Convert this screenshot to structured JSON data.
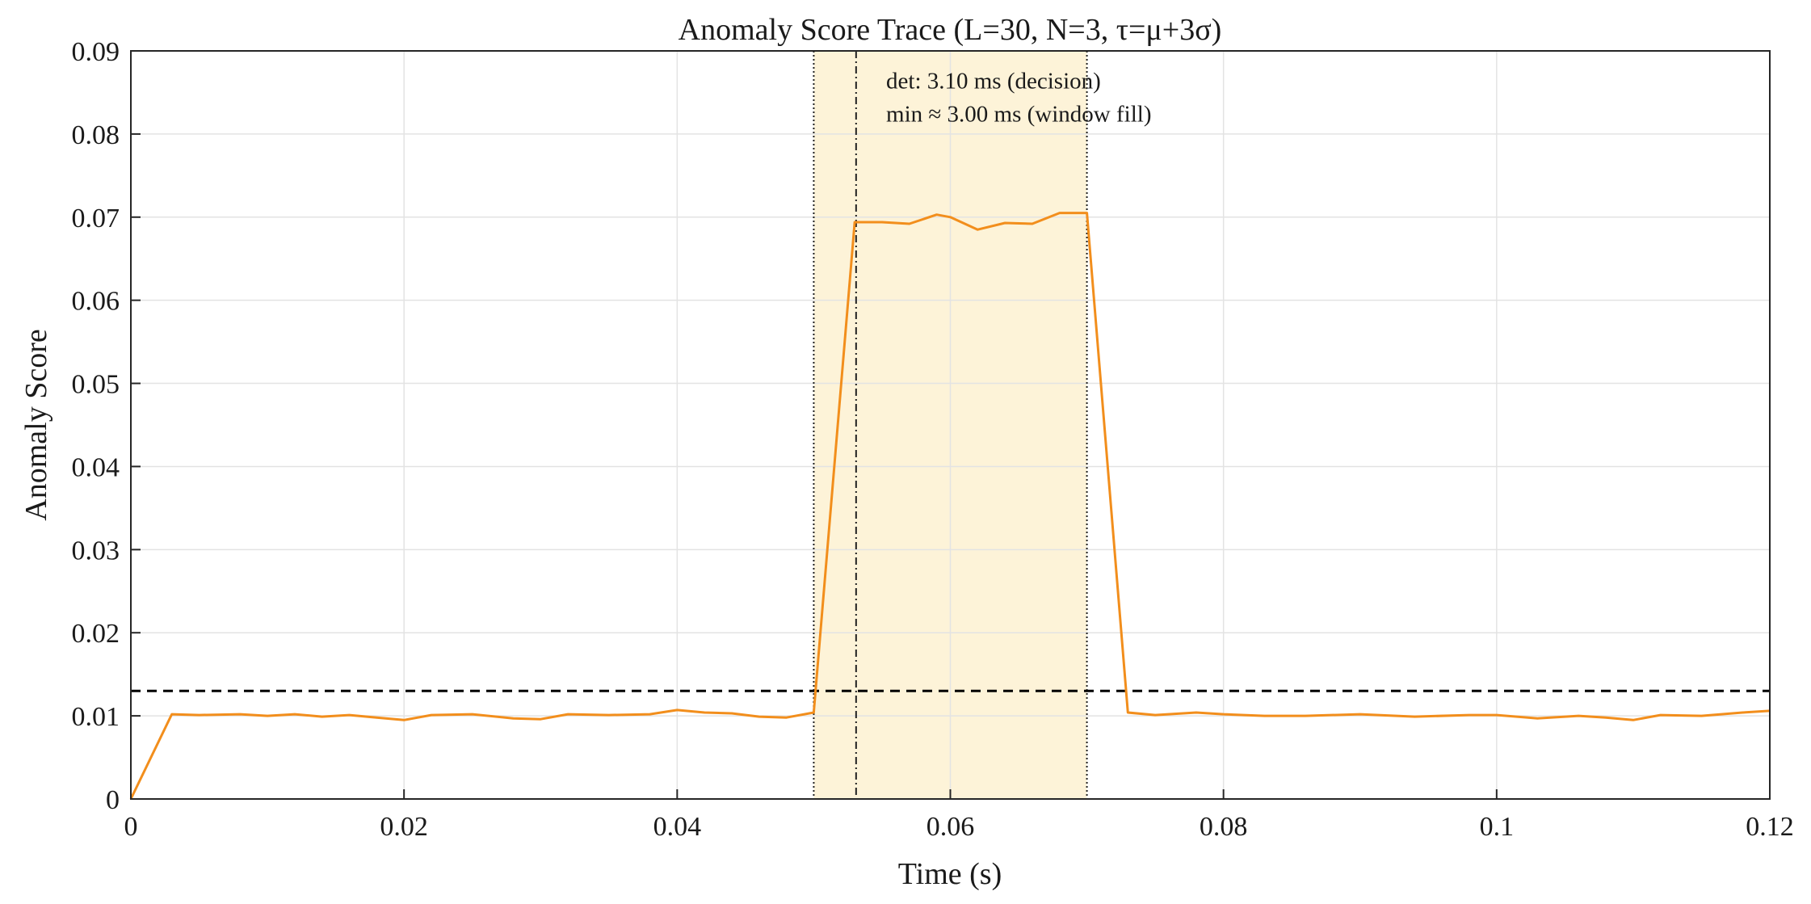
{
  "chart_data": {
    "type": "line",
    "title": "Anomaly Score Trace (L=30, N=3, τ=μ+3σ)",
    "xlabel": "Time (s)",
    "ylabel": "Anomaly Score",
    "xlim": [
      0,
      0.12
    ],
    "ylim": [
      0,
      0.09
    ],
    "grid": true,
    "x_ticks": [
      0,
      0.02,
      0.04,
      0.06,
      0.08,
      0.1,
      0.12
    ],
    "x_tick_labels": [
      "0",
      "0.02",
      "0.04",
      "0.06",
      "0.08",
      "0.1",
      "0.12"
    ],
    "y_ticks": [
      0,
      0.01,
      0.02,
      0.03,
      0.04,
      0.05,
      0.06,
      0.07,
      0.08,
      0.09
    ],
    "y_tick_labels": [
      "0",
      "0.01",
      "0.02",
      "0.03",
      "0.04",
      "0.05",
      "0.06",
      "0.07",
      "0.08",
      "0.09"
    ],
    "threshold": {
      "y": 0.013,
      "style": "dashed",
      "color": "#000000"
    },
    "shaded_region": {
      "x": [
        0.05,
        0.07
      ],
      "color": "#fdf3d8"
    },
    "vertical_lines": [
      {
        "x": 0.05,
        "style": "dotted"
      },
      {
        "x": 0.0531,
        "style": "dash-dot"
      },
      {
        "x": 0.07,
        "style": "dotted"
      }
    ],
    "annotations": [
      {
        "text": "det: 3.10 ms (decision)",
        "x": 0.0553,
        "y": 0.0855
      },
      {
        "text": "min ≈ 3.00 ms (window fill)",
        "x": 0.0553,
        "y": 0.0815
      }
    ],
    "series": [
      {
        "color": "#f28e1c",
        "x": [
          0,
          0.003,
          0.005,
          0.008,
          0.01,
          0.012,
          0.014,
          0.016,
          0.018,
          0.02,
          0.022,
          0.025,
          0.028,
          0.03,
          0.032,
          0.035,
          0.038,
          0.04,
          0.042,
          0.044,
          0.046,
          0.048,
          0.05,
          0.053,
          0.055,
          0.057,
          0.059,
          0.06,
          0.062,
          0.064,
          0.066,
          0.068,
          0.07,
          0.073,
          0.075,
          0.078,
          0.08,
          0.083,
          0.086,
          0.09,
          0.094,
          0.098,
          0.1,
          0.103,
          0.106,
          0.108,
          0.11,
          0.112,
          0.115,
          0.118,
          0.12
        ],
        "y": [
          0,
          0.0102,
          0.0101,
          0.0102,
          0.01,
          0.0102,
          0.0099,
          0.0101,
          0.0098,
          0.0095,
          0.0101,
          0.0102,
          0.0097,
          0.0096,
          0.0102,
          0.0101,
          0.0102,
          0.0107,
          0.0104,
          0.0103,
          0.0099,
          0.0098,
          0.0104,
          0.0694,
          0.0694,
          0.0692,
          0.0703,
          0.07,
          0.0685,
          0.0693,
          0.0692,
          0.0705,
          0.0705,
          0.0104,
          0.0101,
          0.0104,
          0.0102,
          0.01,
          0.01,
          0.0102,
          0.0099,
          0.0101,
          0.0101,
          0.0097,
          0.01,
          0.0098,
          0.0095,
          0.0101,
          0.01,
          0.0104,
          0.0106
        ]
      }
    ]
  }
}
